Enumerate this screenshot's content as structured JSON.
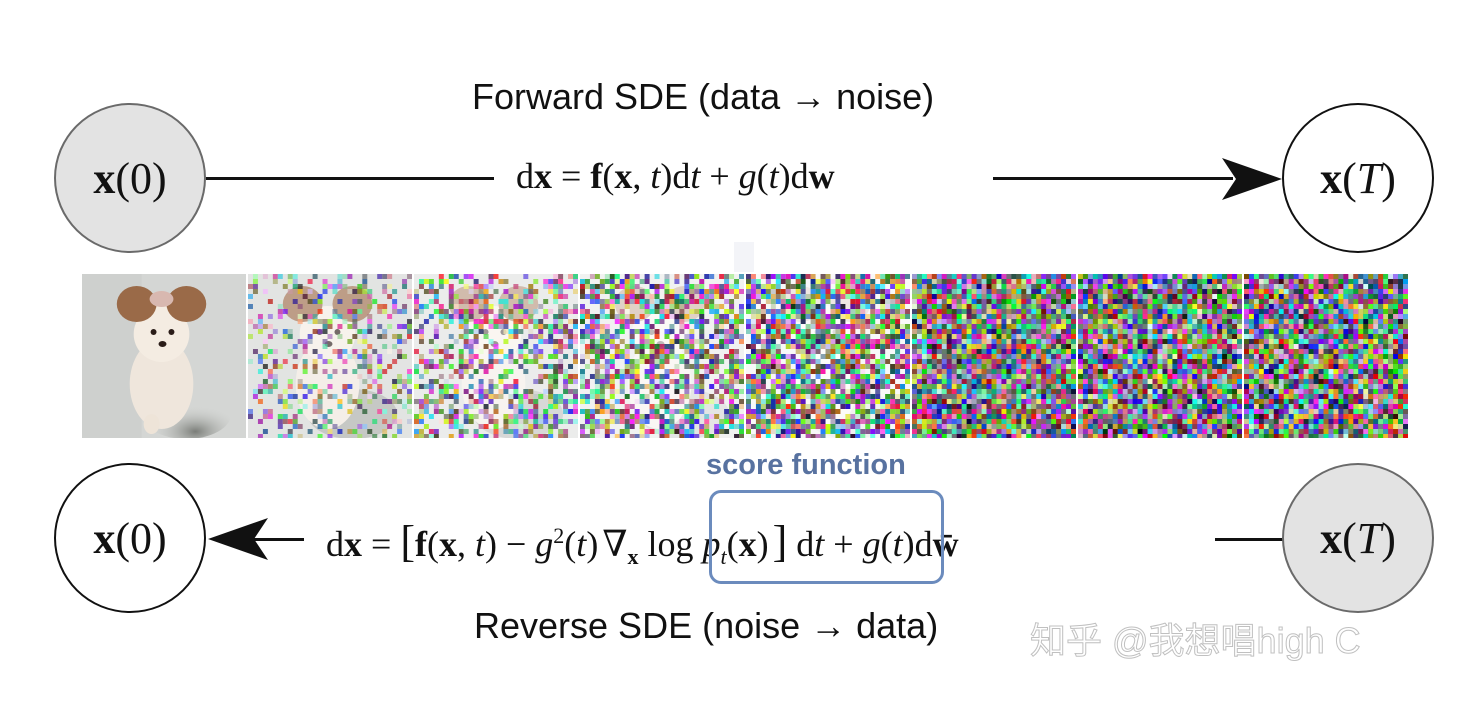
{
  "diagram": {
    "forward": {
      "title": "Forward SDE (data → noise)",
      "equation_parts": {
        "lhs_d": "d",
        "lhs_x": "x",
        "eq": " = ",
        "f": "f",
        "args": "(x, t)",
        "dt": "dt",
        "plus": " + ",
        "g": "g",
        "gt": "(t)",
        "d": "d",
        "w": "w"
      },
      "start_node": {
        "var": "x",
        "arg": "0",
        "style": "filled",
        "fill": "#e3e3e3"
      },
      "end_node": {
        "var": "x",
        "arg": "T",
        "style": "outline",
        "fill": "#ffffff"
      },
      "arrow_direction": "right"
    },
    "reverse": {
      "title": "Reverse SDE (noise → data)",
      "equation_parts": {
        "lhs_d": "d",
        "lhs_x": "x",
        "eq": " = ",
        "lbracket": "[",
        "f": "f",
        "args": "(x, t)",
        "minus": " − ",
        "g": "g",
        "sq": "2",
        "gt": "(t)",
        "nabla": "∇",
        "nabla_sub": "x",
        "log": " log ",
        "p": "p",
        "p_sub": "t",
        "p_arg_open": "(",
        "p_arg": "x",
        "p_arg_close": ")",
        "rbracket": "]",
        "dt": " dt",
        "plus": " + ",
        "g2": "g",
        "gt2": "(t)",
        "d": "d",
        "wbar": "w̄"
      },
      "start_node": {
        "var": "x",
        "arg": "T",
        "style": "filled",
        "fill": "#e3e3e3"
      },
      "end_node": {
        "var": "x",
        "arg": "0",
        "style": "outline",
        "fill": "#ffffff"
      },
      "arrow_direction": "left",
      "score_function": {
        "label": "score function",
        "color": "#5872a0",
        "box_color": "#6b8bbd"
      }
    },
    "noise_strip": {
      "count": 8,
      "subject": "dog photo progressively corrupted with noise",
      "noise_levels": [
        0,
        0.35,
        0.55,
        0.7,
        0.85,
        0.95,
        1.0,
        1.0
      ]
    },
    "watermark": "知乎 @我想唱high C"
  }
}
